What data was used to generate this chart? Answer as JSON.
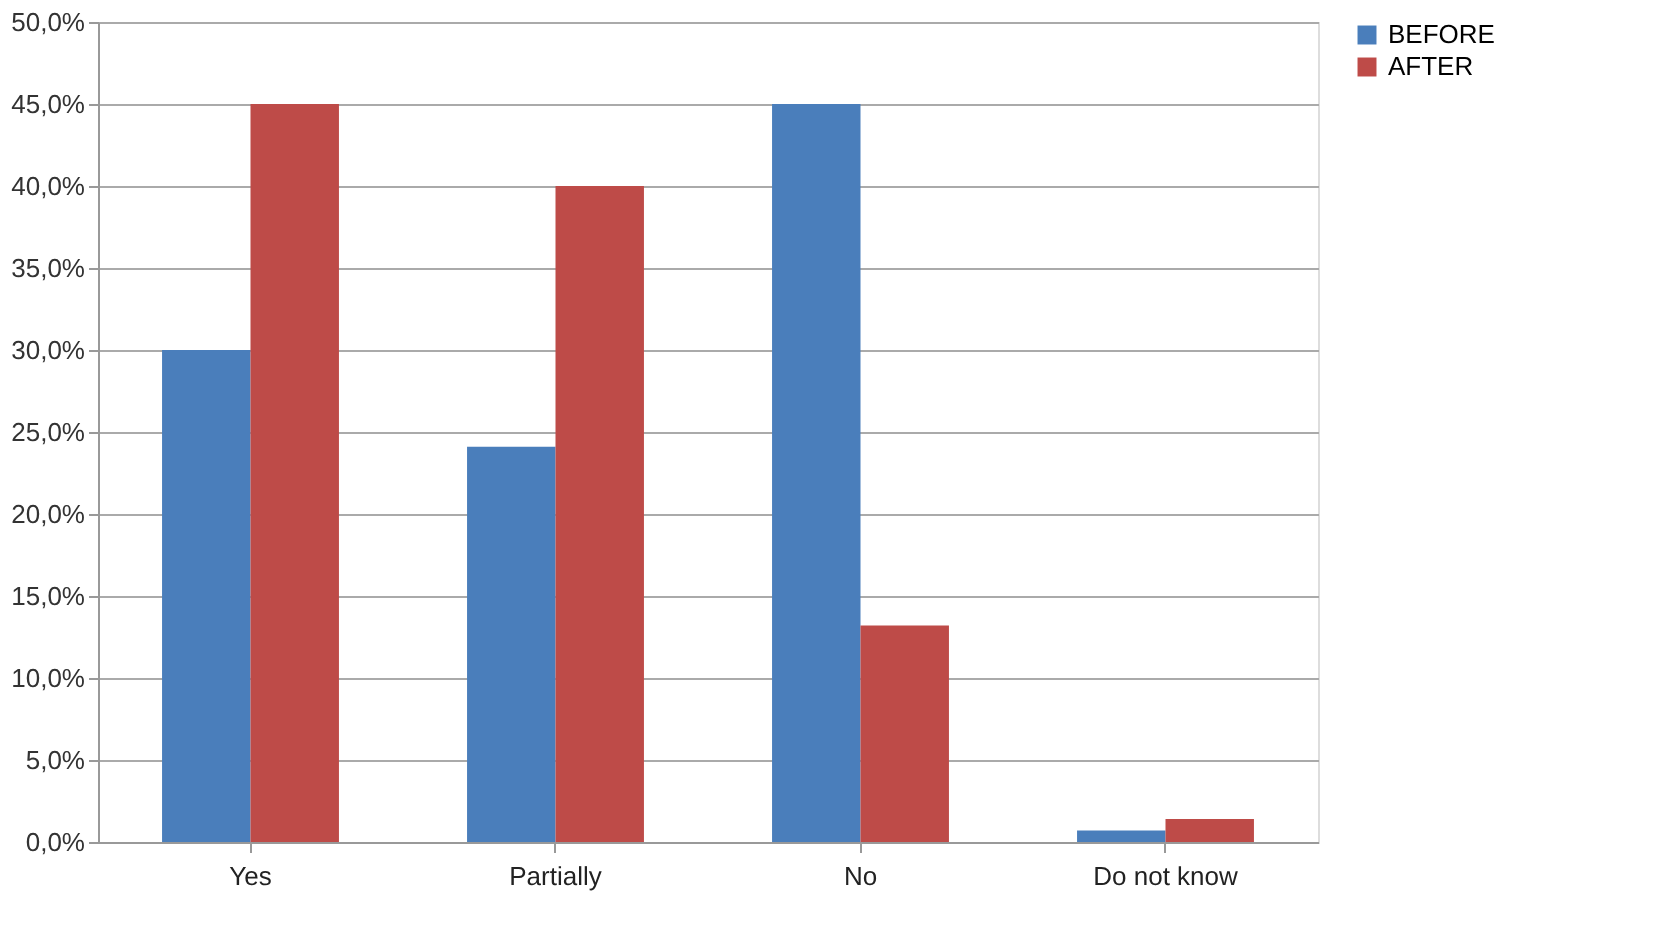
{
  "chart_data": {
    "type": "bar",
    "categories": [
      "Yes",
      "Partially",
      "No",
      "Do not know"
    ],
    "series": [
      {
        "name": "BEFORE",
        "color": "#4a7ebb",
        "values": [
          30.0,
          24.1,
          45.0,
          0.7
        ]
      },
      {
        "name": "AFTER",
        "color": "#be4b48",
        "values": [
          45.0,
          40.0,
          13.2,
          1.4
        ]
      }
    ],
    "ylim": [
      0,
      50
    ],
    "yticks": [
      {
        "value": 0,
        "label": "0,0%"
      },
      {
        "value": 5,
        "label": "5,0%"
      },
      {
        "value": 10,
        "label": "10,0%"
      },
      {
        "value": 15,
        "label": "15,0%"
      },
      {
        "value": 20,
        "label": "20,0%"
      },
      {
        "value": 25,
        "label": "25,0%"
      },
      {
        "value": 30,
        "label": "30,0%"
      },
      {
        "value": 35,
        "label": "35,0%"
      },
      {
        "value": 40,
        "label": "40,0%"
      },
      {
        "value": 45,
        "label": "45,0%"
      },
      {
        "value": 50,
        "label": "50,0%"
      }
    ],
    "grid": "y",
    "legend": "right"
  }
}
